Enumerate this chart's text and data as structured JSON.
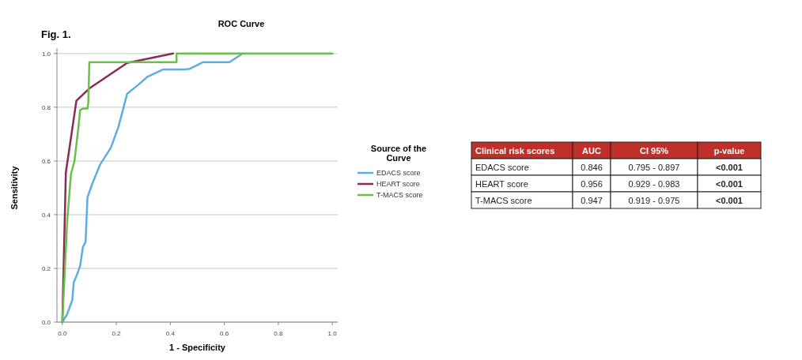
{
  "chart_data": [
    {
      "type": "line",
      "title": "ROC Curve",
      "xlabel": "1 - Specificity",
      "ylabel": "Sensitivity",
      "legend_title": "Source of the Curve",
      "annotations": [
        "Fig. 1."
      ],
      "xlim": [
        -0.02,
        1.02
      ],
      "ylim": [
        0,
        1.02
      ],
      "xticks": [
        {
          "value": 0,
          "label": "0.0"
        },
        0.2,
        0.4,
        0.6,
        0.8,
        {
          "value": 1,
          "label": "1.0"
        }
      ],
      "yticks": [
        {
          "value": 0,
          "label": "0.0"
        },
        0.2,
        0.4,
        0.6,
        0.8,
        {
          "value": 1,
          "label": "1.0"
        }
      ],
      "grid": "y",
      "legend": "right",
      "marker": "none",
      "line_style": "solid",
      "series": [
        {
          "name": "EDACS score",
          "color": "#5aaee6",
          "x": [
            0,
            0.018,
            0.037,
            0.042,
            0.052,
            0.066,
            0.076,
            0.086,
            0.093,
            0.11,
            0.14,
            0.18,
            0.208,
            0.24,
            0.277,
            0.316,
            0.374,
            0.453,
            0.472,
            0.521,
            0.619,
            0.668
          ],
          "values": [
            0,
            0.03,
            0.083,
            0.147,
            0.171,
            0.21,
            0.279,
            0.298,
            0.464,
            0.513,
            0.587,
            0.65,
            0.728,
            0.85,
            0.88,
            0.914,
            0.941,
            0.941,
            0.943,
            0.968,
            0.968,
            1.0
          ]
        },
        {
          "name": "HEART score",
          "color": "#8b2a55",
          "x": [
            0,
            0.013,
            0.052,
            0.1,
            0.24,
            0.41
          ],
          "values": [
            0,
            0.557,
            0.824,
            0.87,
            0.965,
            1.0
          ]
        },
        {
          "name": "T-MACS score",
          "color": "#6cbf4a",
          "x": [
            0,
            0.018,
            0.032,
            0.045,
            0.052,
            0.06,
            0.066,
            0.076,
            0.093,
            0.096,
            0.1,
            0.423,
            0.423,
            1.0
          ],
          "values": [
            0,
            0.376,
            0.552,
            0.6,
            0.66,
            0.73,
            0.79,
            0.795,
            0.795,
            0.816,
            0.968,
            0.968,
            1.0,
            1.0
          ]
        }
      ]
    },
    {
      "type": "other",
      "annotations": [
        "Clinical risk scores",
        "AUC",
        "CI 95%",
        "p-value",
        "EDACS score",
        "0.846",
        "0.795 - 0.897",
        "<0.001",
        "HEART score",
        "0.956",
        "0.929 - 0.983",
        "<0.001",
        "T-MACS score",
        "0.947",
        "0.919 - 0.975",
        "<0.001"
      ]
    }
  ]
}
